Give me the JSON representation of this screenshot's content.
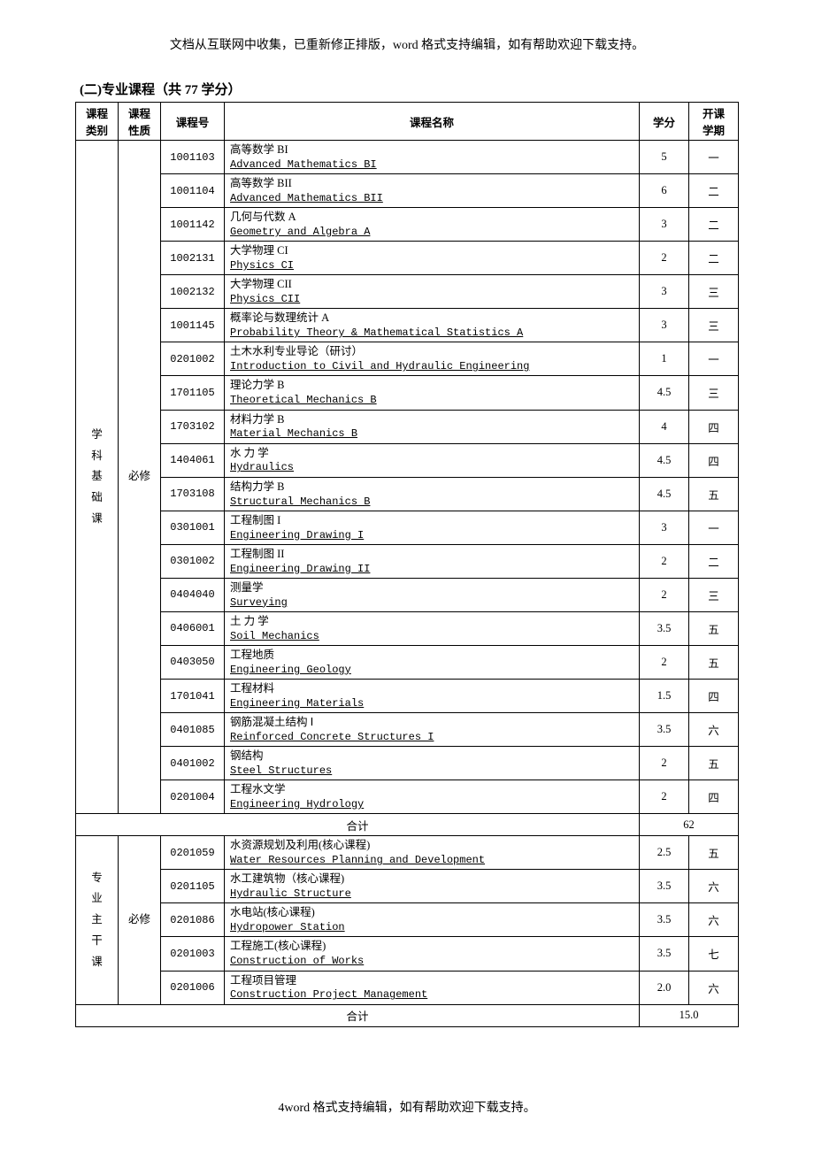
{
  "header": "文档从互联网中收集，已重新修正排版，word 格式支持编辑，如有帮助欢迎下载支持。",
  "sectionTitle": "(二)专业课程（共 77 学分）",
  "columns": {
    "cat": "课程\n类别",
    "nature": "课程\n性质",
    "code": "课程号",
    "name": "课程名称",
    "credit": "学分",
    "term": "开课\n学期"
  },
  "totalLabel": "合计",
  "group1": {
    "cat": "学\n科\n基\n础\n课",
    "nature": "必修",
    "total": "62",
    "rows": [
      {
        "code": "1001103",
        "cn": "高等数学 BI",
        "en": "Advanced Mathematics BI",
        "credit": "5",
        "term": "一"
      },
      {
        "code": "1001104",
        "cn": "高等数学 BII",
        "en": "Advanced Mathematics BII",
        "credit": "6",
        "term": "二"
      },
      {
        "code": "1001142",
        "cn": "几何与代数 A",
        "en": "Geometry and Algebra A",
        "credit": "3",
        "term": "二"
      },
      {
        "code": "1002131",
        "cn": "大学物理 CI",
        "en": "Physics CI",
        "credit": "2",
        "term": "二"
      },
      {
        "code": "1002132",
        "cn": "大学物理 CII",
        "en": "Physics CII",
        "credit": "3",
        "term": "三"
      },
      {
        "code": "1001145",
        "cn": "概率论与数理统计 A",
        "en": "Probability Theory & Mathematical Statistics A",
        "credit": "3",
        "term": "三"
      },
      {
        "code": "0201002",
        "cn": "土木水利专业导论（研讨）",
        "en": "Introduction to Civil and Hydraulic Engineering",
        "credit": "1",
        "term": "一"
      },
      {
        "code": "1701105",
        "cn": "理论力学 B",
        "en": "Theoretical Mechanics B",
        "credit": "4.5",
        "term": "三"
      },
      {
        "code": "1703102",
        "cn": "材料力学 B",
        "en": "Material Mechanics B",
        "credit": "4",
        "term": "四"
      },
      {
        "code": "1404061",
        "cn": "水 力 学",
        "en": "Hydraulics",
        "credit": "4.5",
        "term": "四"
      },
      {
        "code": "1703108",
        "cn": "结构力学 B",
        "en": "Structural Mechanics B",
        "credit": "4.5",
        "term": "五"
      },
      {
        "code": "0301001",
        "cn": "工程制图 I",
        "en": "Engineering Drawing I",
        "credit": "3",
        "term": "一"
      },
      {
        "code": "0301002",
        "cn": "工程制图 II",
        "en": "Engineering Drawing II",
        "credit": "2",
        "term": "二"
      },
      {
        "code": "0404040",
        "cn": "测量学",
        "en": "Surveying",
        "credit": "2",
        "term": "三"
      },
      {
        "code": "0406001",
        "cn": "土 力 学",
        "en": "Soil Mechanics",
        "credit": "3.5",
        "term": "五"
      },
      {
        "code": "0403050",
        "cn": "工程地质",
        "en": "Engineering Geology",
        "credit": "2",
        "term": "五"
      },
      {
        "code": "1701041",
        "cn": "工程材料",
        "en": "Engineering Materials",
        "credit": "1.5",
        "term": "四"
      },
      {
        "code": "0401085",
        "cn": "钢筋混凝土结构 Ⅰ",
        "en": "Reinforced Concrete Structures I",
        "credit": "3.5",
        "term": "六"
      },
      {
        "code": "0401002",
        "cn": "钢结构",
        "en": "Steel Structures",
        "credit": "2",
        "term": "五"
      },
      {
        "code": "0201004",
        "cn": "工程水文学",
        "en": "Engineering Hydrology",
        "credit": "2",
        "term": "四"
      }
    ]
  },
  "group2": {
    "cat": "专\n业\n主\n干\n课",
    "nature": "必修",
    "total": "15.0",
    "rows": [
      {
        "code": "0201059",
        "cn": "水资源规划及利用(核心课程)",
        "en": "Water Resources Planning and  Development",
        "credit": "2.5",
        "term": "五"
      },
      {
        "code": "0201105",
        "cn": "水工建筑物（核心课程)",
        "en": "Hydraulic Structure",
        "credit": "3.5",
        "term": "六"
      },
      {
        "code": "0201086",
        "cn": "水电站(核心课程)",
        "en": "Hydropower Station",
        "credit": "3.5",
        "term": "六"
      },
      {
        "code": "0201003",
        "cn": "工程施工(核心课程)",
        "en": "Construction of Works",
        "credit": "3.5",
        "term": "七"
      },
      {
        "code": "0201006",
        "cn": "工程项目管理",
        "en": "Construction Project Management",
        "credit": "2.0",
        "term": "六"
      }
    ]
  },
  "footer": "4word 格式支持编辑，如有帮助欢迎下载支持。"
}
